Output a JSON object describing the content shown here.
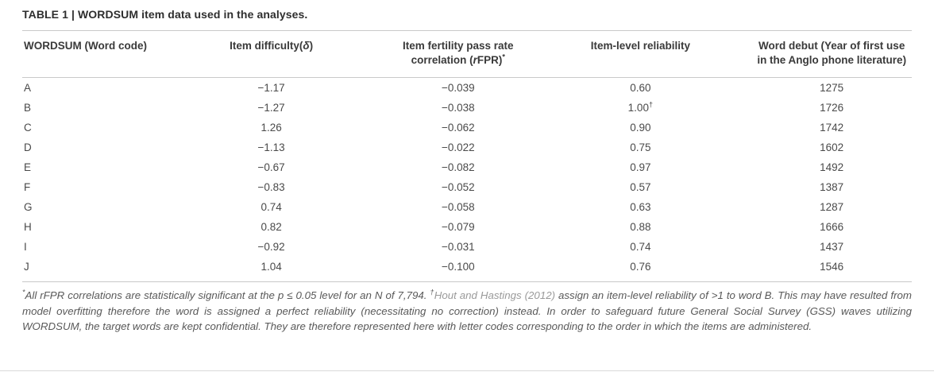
{
  "title": "TABLE 1 | WORDSUM item data used in the analyses.",
  "colors": {
    "heading_text": "#2e2e2e",
    "body_text": "#4a4a4a",
    "rule": "#c9c9c9",
    "footnote_text": "#595959",
    "citation_link": "#9a9a9a"
  },
  "table": {
    "columns": [
      {
        "align": "left",
        "label_segments": [
          {
            "t": "WORDSUM (Word code)",
            "s": "n"
          }
        ]
      },
      {
        "align": "center",
        "label_segments": [
          {
            "t": "Item difficulty(",
            "s": "n"
          },
          {
            "t": "δ",
            "s": "i"
          },
          {
            "t": ")",
            "s": "n"
          }
        ]
      },
      {
        "align": "center",
        "label_segments": [
          {
            "t": "Item fertility pass rate correlation (",
            "s": "n"
          },
          {
            "t": "r",
            "s": "i"
          },
          {
            "t": "FPR)",
            "s": "n"
          },
          {
            "t": "*",
            "s": "sup"
          }
        ]
      },
      {
        "align": "center",
        "label_segments": [
          {
            "t": "Item-level reliability",
            "s": "n"
          }
        ]
      },
      {
        "align": "center",
        "label_segments": [
          {
            "t": "Word debut (Year of first use in the Anglo phone literature)",
            "s": "n"
          }
        ]
      }
    ],
    "rows": [
      {
        "code": "A",
        "difficulty": "−1.17",
        "rfpr": "−0.039",
        "reliability": "0.60",
        "reliability_sup": "",
        "debut": "1275"
      },
      {
        "code": "B",
        "difficulty": "−1.27",
        "rfpr": "−0.038",
        "reliability": "1.00",
        "reliability_sup": "†",
        "debut": "1726"
      },
      {
        "code": "C",
        "difficulty": "1.26",
        "rfpr": "−0.062",
        "reliability": "0.90",
        "reliability_sup": "",
        "debut": "1742"
      },
      {
        "code": "D",
        "difficulty": "−1.13",
        "rfpr": "−0.022",
        "reliability": "0.75",
        "reliability_sup": "",
        "debut": "1602"
      },
      {
        "code": "E",
        "difficulty": "−0.67",
        "rfpr": "−0.082",
        "reliability": "0.97",
        "reliability_sup": "",
        "debut": "1492"
      },
      {
        "code": "F",
        "difficulty": "−0.83",
        "rfpr": "−0.052",
        "reliability": "0.57",
        "reliability_sup": "",
        "debut": "1387"
      },
      {
        "code": "G",
        "difficulty": "0.74",
        "rfpr": "−0.058",
        "reliability": "0.63",
        "reliability_sup": "",
        "debut": "1287"
      },
      {
        "code": "H",
        "difficulty": "0.82",
        "rfpr": "−0.079",
        "reliability": "0.88",
        "reliability_sup": "",
        "debut": "1666"
      },
      {
        "code": "I",
        "difficulty": "−0.92",
        "rfpr": "−0.031",
        "reliability": "0.74",
        "reliability_sup": "",
        "debut": "1437"
      },
      {
        "code": "J",
        "difficulty": "1.04",
        "rfpr": "−0.100",
        "reliability": "0.76",
        "reliability_sup": "",
        "debut": "1546"
      }
    ]
  },
  "footnote": {
    "segments": [
      {
        "t": "*",
        "s": "sup"
      },
      {
        "t": "All rFPR correlations are statistically significant at the p ≤ 0.05 level for an N of 7,794. ",
        "s": "n"
      },
      {
        "t": "†",
        "s": "sup"
      },
      {
        "t": "Hout and Hastings (2012)",
        "s": "cite"
      },
      {
        "t": " assign an item-level reliability of >1 to word B. This may have resulted from model overfitting therefore the word is assigned a perfect reliability (necessitating no correction) instead. In order to safeguard future General Social Survey (GSS) waves utilizing WORDSUM, the target words are kept confidential. They are therefore represented here with letter codes corresponding to the order in which the items are administered.",
        "s": "n"
      }
    ]
  }
}
